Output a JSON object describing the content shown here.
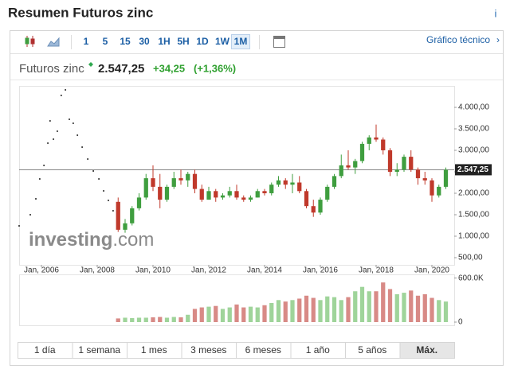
{
  "header": {
    "title": "Resumen Futuros zinc",
    "info": "i",
    "instrument": "Futuros zinc",
    "price": "2.547,25",
    "change": "+34,25",
    "change_pct": "(+1,36%)"
  },
  "toolbar": {
    "intervals": [
      "1",
      "5",
      "15",
      "30",
      "1H",
      "5H",
      "1D",
      "1W",
      "1M"
    ],
    "active_interval": 8,
    "link": "Gráfico técnico"
  },
  "ranges": {
    "items": [
      "1 día",
      "1 semana",
      "1 mes",
      "3 meses",
      "6 meses",
      "1 año",
      "5 años",
      "Máx."
    ],
    "active": 7
  },
  "chart_data": {
    "type": "candlestick",
    "watermark": [
      "investing",
      ".com"
    ],
    "xlim": [
      2005.2,
      2020.8
    ],
    "xticks": [
      {
        "value": 2006,
        "label": "Jan, 2006"
      },
      {
        "value": 2008,
        "label": "Jan, 2008"
      },
      {
        "value": 2010,
        "label": "Jan, 2010"
      },
      {
        "value": 2012,
        "label": "Jan, 2012"
      },
      {
        "value": 2014,
        "label": "Jan, 2014"
      },
      {
        "value": 2016,
        "label": "Jan, 2016"
      },
      {
        "value": 2018,
        "label": "Jan, 2018"
      },
      {
        "value": 2020,
        "label": "Jan, 2020"
      }
    ],
    "ylim": [
      333,
      4500
    ],
    "yticks": [
      {
        "value": 500,
        "label": "500,00"
      },
      {
        "value": 1000,
        "label": "1.000,00"
      },
      {
        "value": 1500,
        "label": "1.500,00"
      },
      {
        "value": 2000,
        "label": "2.000,00"
      },
      {
        "value": 2500,
        "label": "2.500,00"
      },
      {
        "value": 3000,
        "label": "3.000,00"
      },
      {
        "value": 3500,
        "label": "3.500,00"
      },
      {
        "value": 4000,
        "label": "4.000,00"
      }
    ],
    "grid": false,
    "last_price": {
      "value": 2547.25,
      "label": "2.547,25"
    },
    "up_color": "#3f9e3f",
    "down_color": "#c0392b",
    "up_volume_color": "#9fd49a",
    "down_volume_color": "#d88a86",
    "dots": {
      "x": [
        2005.2,
        2005.6,
        2005.8,
        2005.94,
        2006.09,
        2006.23,
        2006.31,
        2006.43,
        2006.57,
        2006.71,
        2006.86,
        2007.0,
        2007.14,
        2007.29,
        2007.46,
        2007.66,
        2007.86,
        2008.06,
        2008.23,
        2008.4,
        2008.57,
        2008.74
      ],
      "values": [
        1241,
        1500,
        1870,
        2333,
        2648,
        3167,
        3685,
        3259,
        3444,
        4278,
        4407,
        3722,
        3630,
        3352,
        3074,
        2796,
        2519,
        2333,
        2056,
        1833,
        1593,
        1352
      ],
      "color": "#222222"
    },
    "x": [
      2008.75,
      2009.0,
      2009.25,
      2009.5,
      2009.75,
      2010.0,
      2010.25,
      2010.5,
      2010.75,
      2011.0,
      2011.25,
      2011.5,
      2011.75,
      2012.0,
      2012.25,
      2012.5,
      2012.75,
      2013.0,
      2013.25,
      2013.5,
      2013.75,
      2014.0,
      2014.25,
      2014.5,
      2014.75,
      2015.0,
      2015.25,
      2015.5,
      2015.75,
      2016.0,
      2016.25,
      2016.5,
      2016.75,
      2017.0,
      2017.25,
      2017.5,
      2017.75,
      2018.0,
      2018.25,
      2018.5,
      2018.75,
      2019.0,
      2019.25,
      2019.5,
      2019.75,
      2020.0,
      2020.25,
      2020.5
    ],
    "open": [
      1800,
      1150,
      1300,
      1650,
      1900,
      2350,
      2150,
      1850,
      2150,
      2350,
      2300,
      2450,
      2100,
      1850,
      2050,
      1900,
      1950,
      2050,
      1900,
      1850,
      1900,
      2050,
      2000,
      2200,
      2300,
      2200,
      2250,
      2050,
      1700,
      1550,
      1850,
      2150,
      2400,
      2650,
      2600,
      2750,
      3150,
      3300,
      3250,
      3000,
      2500,
      2550,
      2850,
      2550,
      2350,
      2300,
      1950,
      2150
    ],
    "high": [
      1900,
      1400,
      1700,
      2000,
      2450,
      2650,
      2450,
      2200,
      2500,
      2550,
      2500,
      2550,
      2200,
      2150,
      2100,
      2000,
      2150,
      2200,
      1950,
      1950,
      2100,
      2100,
      2250,
      2400,
      2350,
      2450,
      2400,
      2100,
      1850,
      1900,
      2200,
      2450,
      2900,
      3000,
      2800,
      3200,
      3350,
      3600,
      3300,
      3050,
      2700,
      2900,
      3000,
      2600,
      2500,
      2350,
      2200,
      2600
    ],
    "low": [
      1100,
      1080,
      1250,
      1600,
      1850,
      2050,
      1650,
      1800,
      2100,
      2200,
      2150,
      2000,
      1800,
      1850,
      1800,
      1850,
      1900,
      1850,
      1800,
      1800,
      1900,
      1950,
      1950,
      2150,
      2100,
      2000,
      2000,
      1650,
      1450,
      1500,
      1800,
      2100,
      2350,
      2550,
      2450,
      2700,
      3000,
      3200,
      2900,
      2400,
      2400,
      2500,
      2500,
      2200,
      2200,
      1800,
      1900,
      2100
    ],
    "close": [
      1150,
      1300,
      1650,
      1900,
      2350,
      2150,
      1850,
      2150,
      2350,
      2300,
      2450,
      2100,
      1850,
      2050,
      1900,
      1950,
      2050,
      1900,
      1850,
      1900,
      2050,
      2000,
      2200,
      2300,
      2200,
      2250,
      2050,
      1700,
      1550,
      1850,
      2150,
      2400,
      2650,
      2600,
      2750,
      3150,
      3300,
      3250,
      3000,
      2500,
      2550,
      2850,
      2550,
      2350,
      2300,
      1950,
      2150,
      2547.25
    ],
    "volume": [
      50000,
      60000,
      55000,
      60000,
      60000,
      65000,
      70000,
      60000,
      70000,
      65000,
      100000,
      180000,
      200000,
      210000,
      220000,
      180000,
      200000,
      240000,
      200000,
      210000,
      200000,
      230000,
      260000,
      300000,
      280000,
      300000,
      320000,
      360000,
      330000,
      300000,
      350000,
      340000,
      300000,
      340000,
      420000,
      480000,
      420000,
      420000,
      540000,
      450000,
      380000,
      400000,
      430000,
      360000,
      380000,
      330000,
      300000,
      280000
    ],
    "volume_lim": [
      0,
      650000
    ],
    "volume_ticks": [
      {
        "value": 600000,
        "label": "600.0K"
      },
      0
    ]
  }
}
